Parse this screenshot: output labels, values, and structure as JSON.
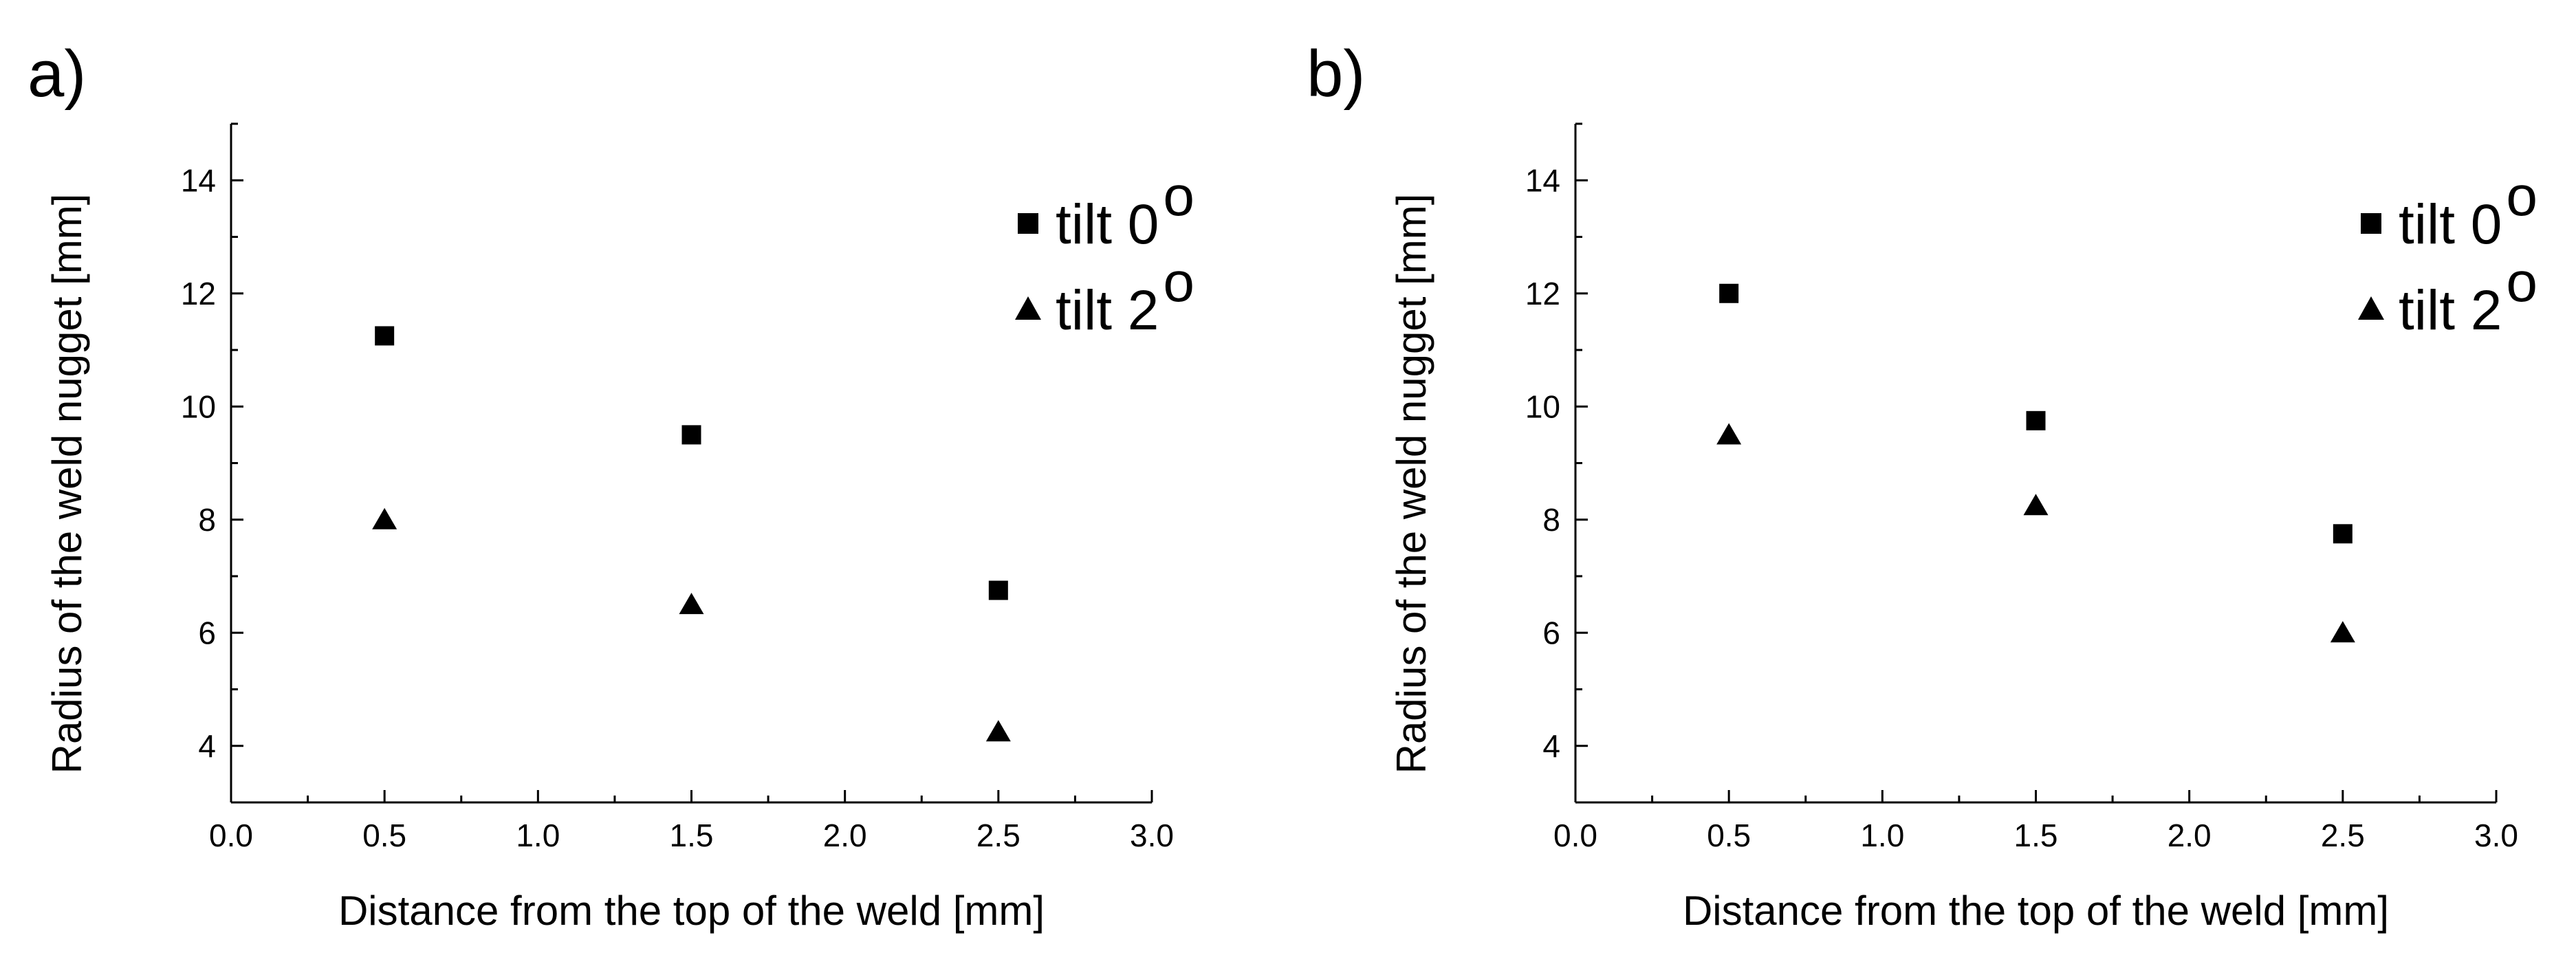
{
  "chart_data": [
    {
      "type": "scatter",
      "panel_label": "a)",
      "xlabel": "Distance from the top of the weld [mm]",
      "ylabel": "Radius of the weld nugget [mm]",
      "xlim": [
        0.0,
        3.0
      ],
      "ylim": [
        3.0,
        15.0
      ],
      "xticks": [
        "0.0",
        "0.5",
        "1.0",
        "1.5",
        "2.0",
        "2.5",
        "3.0"
      ],
      "yticks": [
        "4",
        "6",
        "8",
        "10",
        "12",
        "14"
      ],
      "legend_position": "top-right",
      "series": [
        {
          "name": "tilt 0",
          "legend_label": "tilt 0",
          "legend_superscript": "o",
          "marker": "square",
          "x": [
            0.5,
            1.5,
            2.5
          ],
          "y": [
            11.25,
            9.5,
            6.75
          ]
        },
        {
          "name": "tilt 2",
          "legend_label": "tilt 2",
          "legend_superscript": "o",
          "marker": "triangle",
          "x": [
            0.5,
            1.5,
            2.5
          ],
          "y": [
            8.0,
            6.5,
            4.25
          ]
        }
      ]
    },
    {
      "type": "scatter",
      "panel_label": "b)",
      "xlabel": "Distance from the top of the weld [mm]",
      "ylabel": "Radius of the weld nugget [mm]",
      "xlim": [
        0.0,
        3.0
      ],
      "ylim": [
        3.0,
        15.0
      ],
      "xticks": [
        "0.0",
        "0.5",
        "1.0",
        "1.5",
        "2.0",
        "2.5",
        "3.0"
      ],
      "yticks": [
        "4",
        "6",
        "8",
        "10",
        "12",
        "14"
      ],
      "legend_position": "top-right",
      "series": [
        {
          "name": "tilt 0",
          "legend_label": "tilt 0",
          "legend_superscript": "o",
          "marker": "square",
          "x": [
            0.5,
            1.5,
            2.5
          ],
          "y": [
            12.0,
            9.75,
            7.75
          ]
        },
        {
          "name": "tilt 2",
          "legend_label": "tilt 2",
          "legend_superscript": "o",
          "marker": "triangle",
          "x": [
            0.5,
            1.5,
            2.5
          ],
          "y": [
            9.5,
            8.25,
            6.0
          ]
        }
      ]
    }
  ]
}
